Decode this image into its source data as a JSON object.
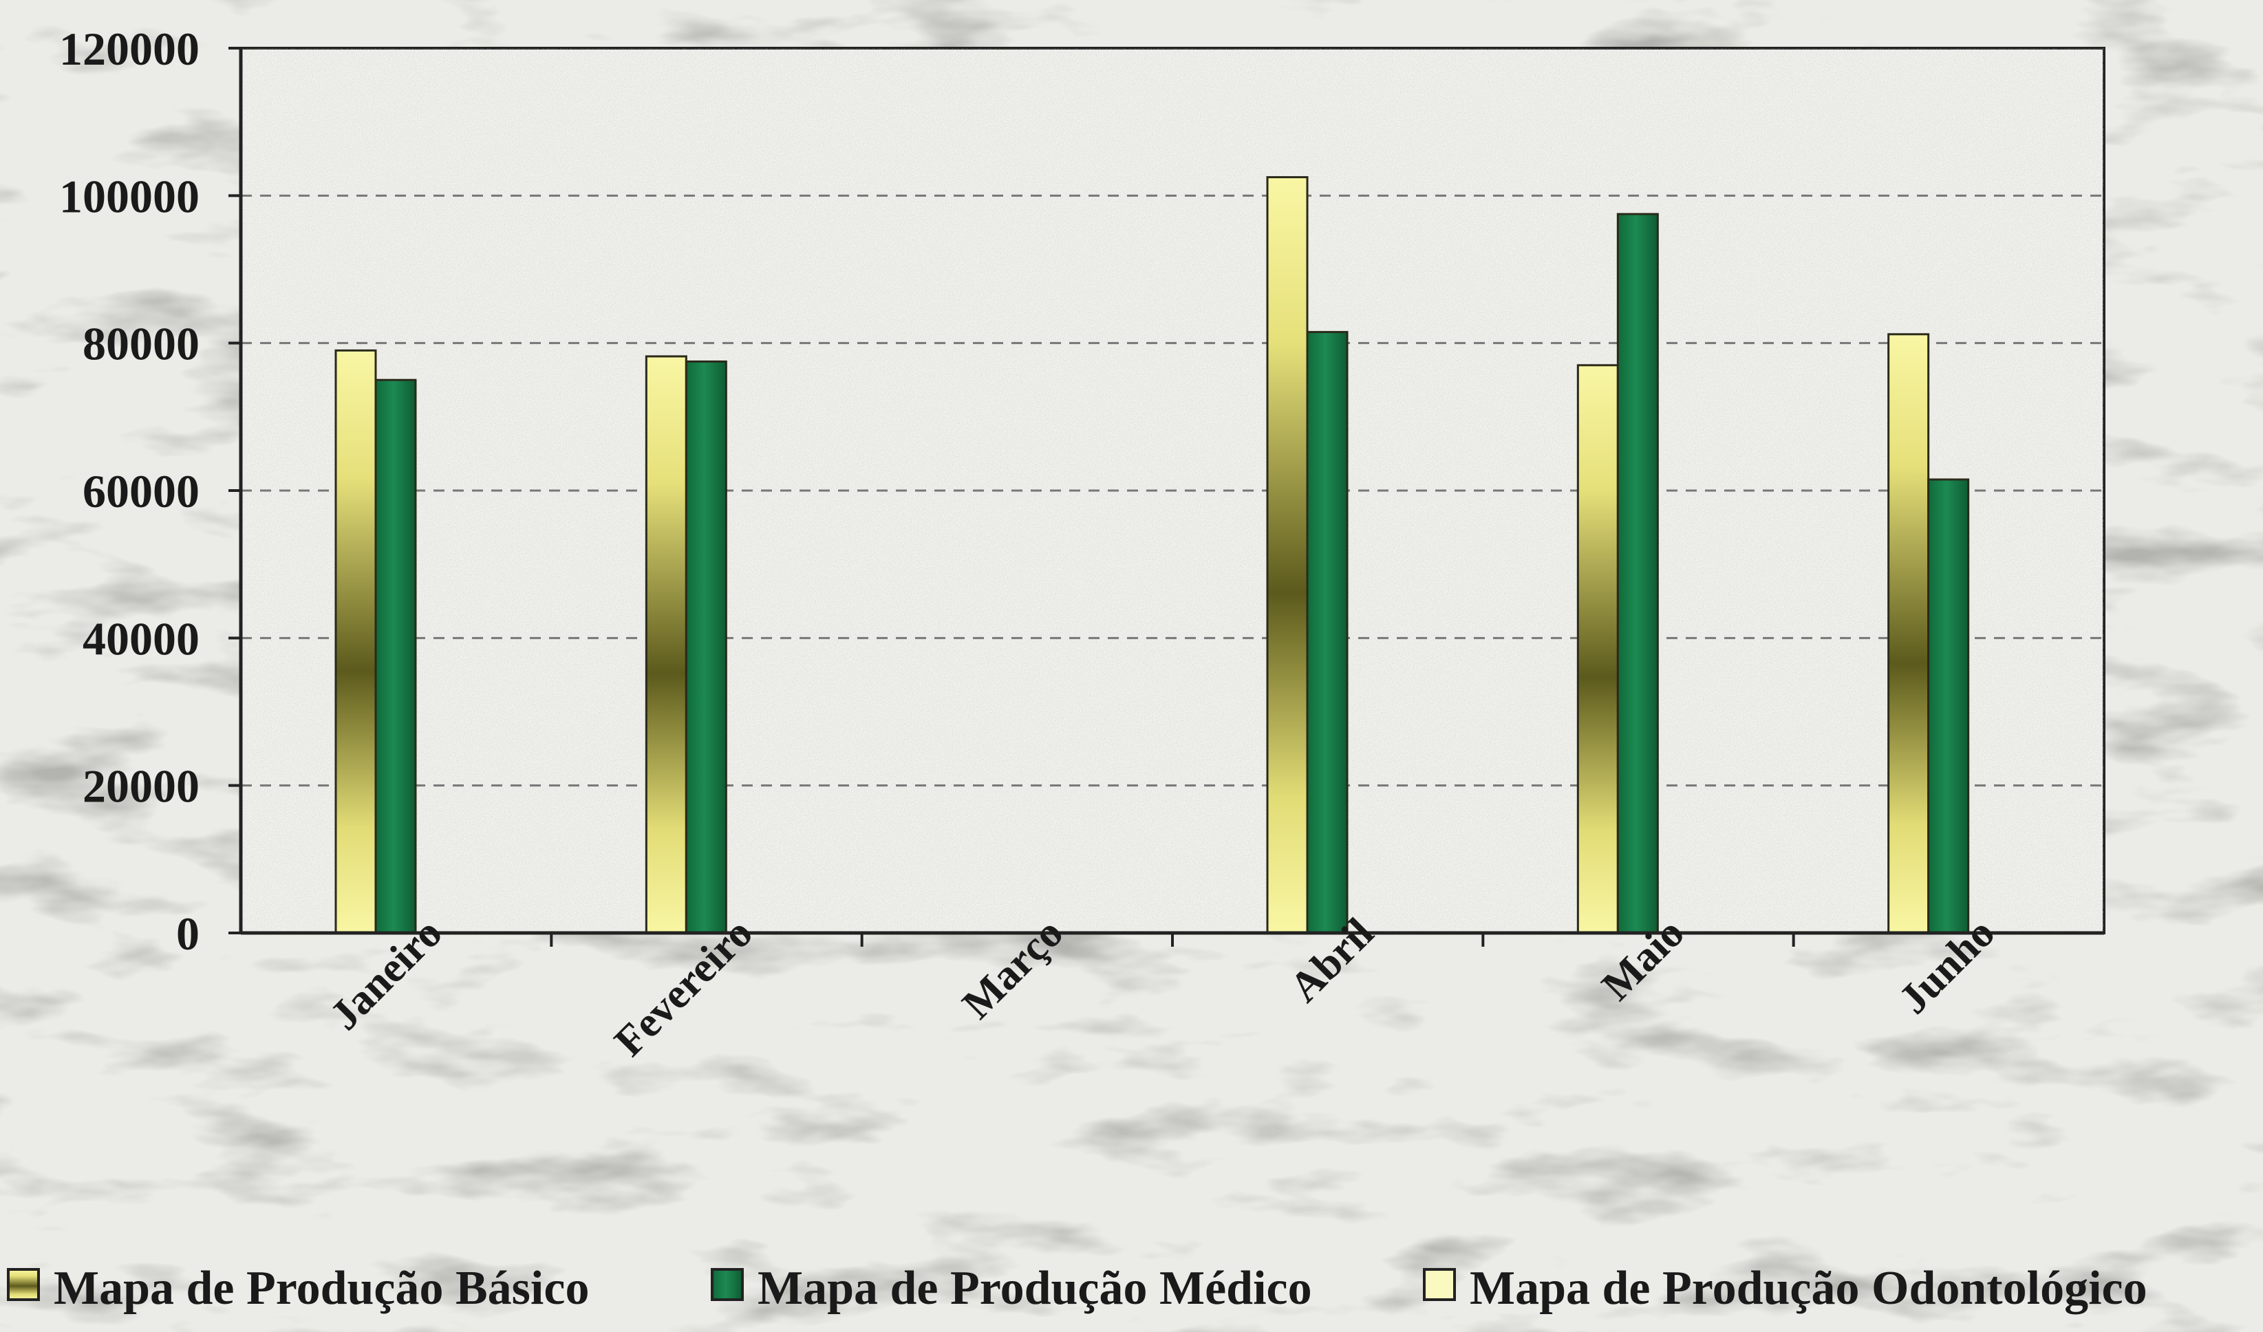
{
  "chart_data": {
    "type": "bar",
    "title": "",
    "xlabel": "",
    "ylabel": "",
    "categories": [
      "Janeiro",
      "Fevereiro",
      "Março",
      "Abril",
      "Maio",
      "Junho"
    ],
    "ylim": [
      0,
      120000
    ],
    "yticks": [
      0,
      20000,
      40000,
      60000,
      80000,
      100000,
      120000
    ],
    "grid": true,
    "legend_position": "bottom",
    "series": [
      {
        "name": "Mapa de Produção Básico",
        "values": [
          79000,
          78200,
          0,
          102500,
          77000,
          81200
        ],
        "color": "#f7f39a"
      },
      {
        "name": "Mapa de Produção Médico",
        "values": [
          75000,
          77500,
          0,
          81500,
          97500,
          61500
        ],
        "color": "#167a46"
      },
      {
        "name": "Mapa de Produção Odontológico",
        "values": [
          0,
          0,
          0,
          0,
          0,
          0
        ],
        "color": "#fafac0"
      }
    ]
  }
}
